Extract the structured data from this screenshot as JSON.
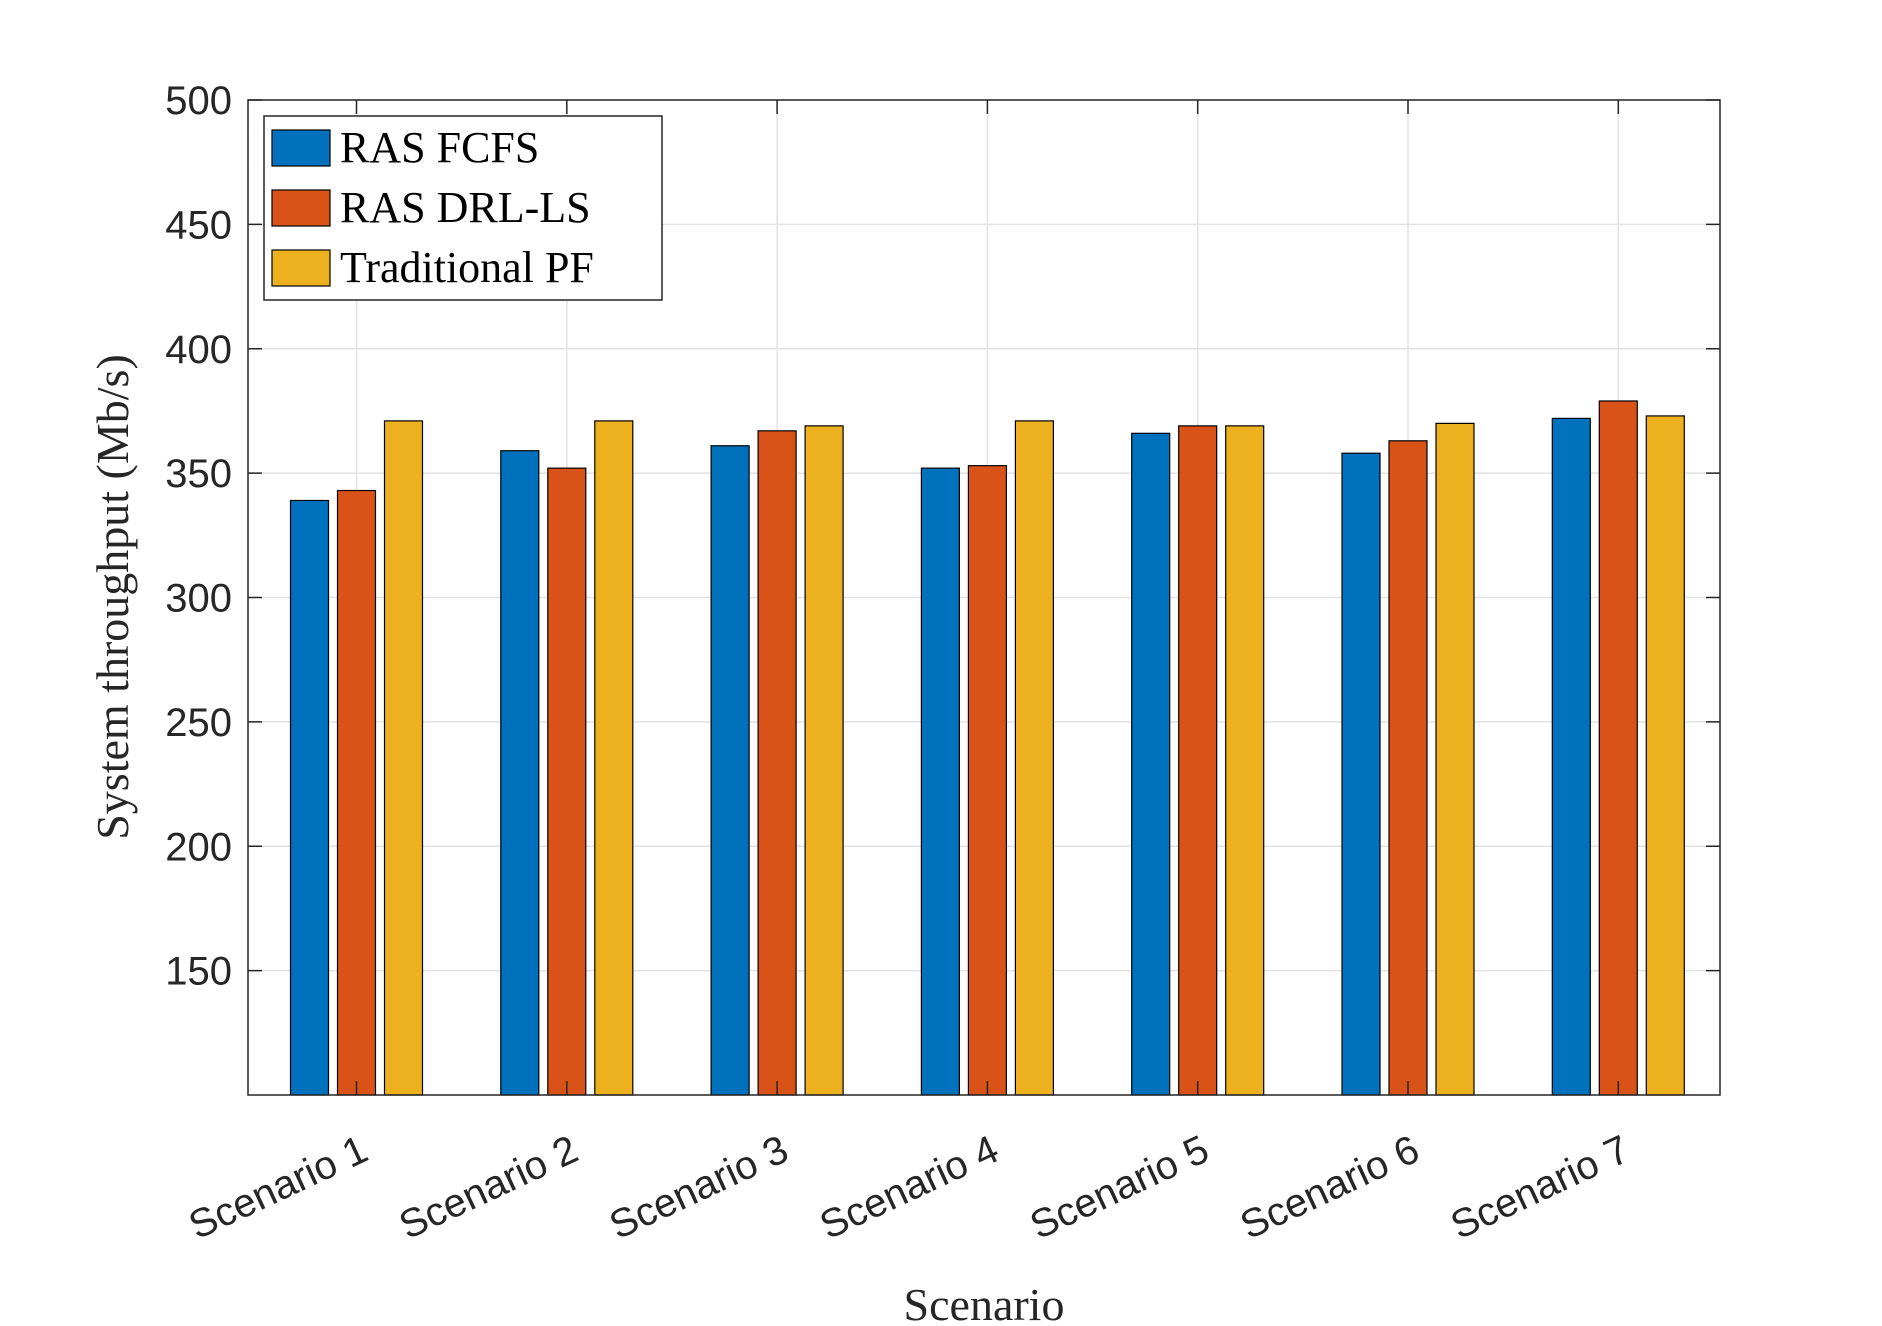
{
  "chart_data": {
    "type": "bar",
    "xlabel": "Scenario",
    "ylabel": "System throughput (Mb/s)",
    "categories": [
      "Scenario 1",
      "Scenario 2",
      "Scenario 3",
      "Scenario 4",
      "Scenario 5",
      "Scenario 6",
      "Scenario 7"
    ],
    "ylim": [
      100,
      500
    ],
    "yticks": [
      "150",
      "200",
      "250",
      "300",
      "350",
      "400",
      "450",
      "500"
    ],
    "grid": true,
    "legend_position": "top-left",
    "series": [
      {
        "name": "RAS FCFS",
        "color": "#0072BD",
        "values": [
          339,
          359,
          361,
          352,
          366,
          358,
          372
        ]
      },
      {
        "name": "RAS DRL-LS",
        "color": "#D95319",
        "values": [
          343,
          352,
          367,
          353,
          369,
          363,
          379
        ]
      },
      {
        "name": "Traditional PF",
        "color": "#EDB120",
        "values": [
          371,
          371,
          369,
          371,
          369,
          370,
          373
        ]
      }
    ]
  }
}
